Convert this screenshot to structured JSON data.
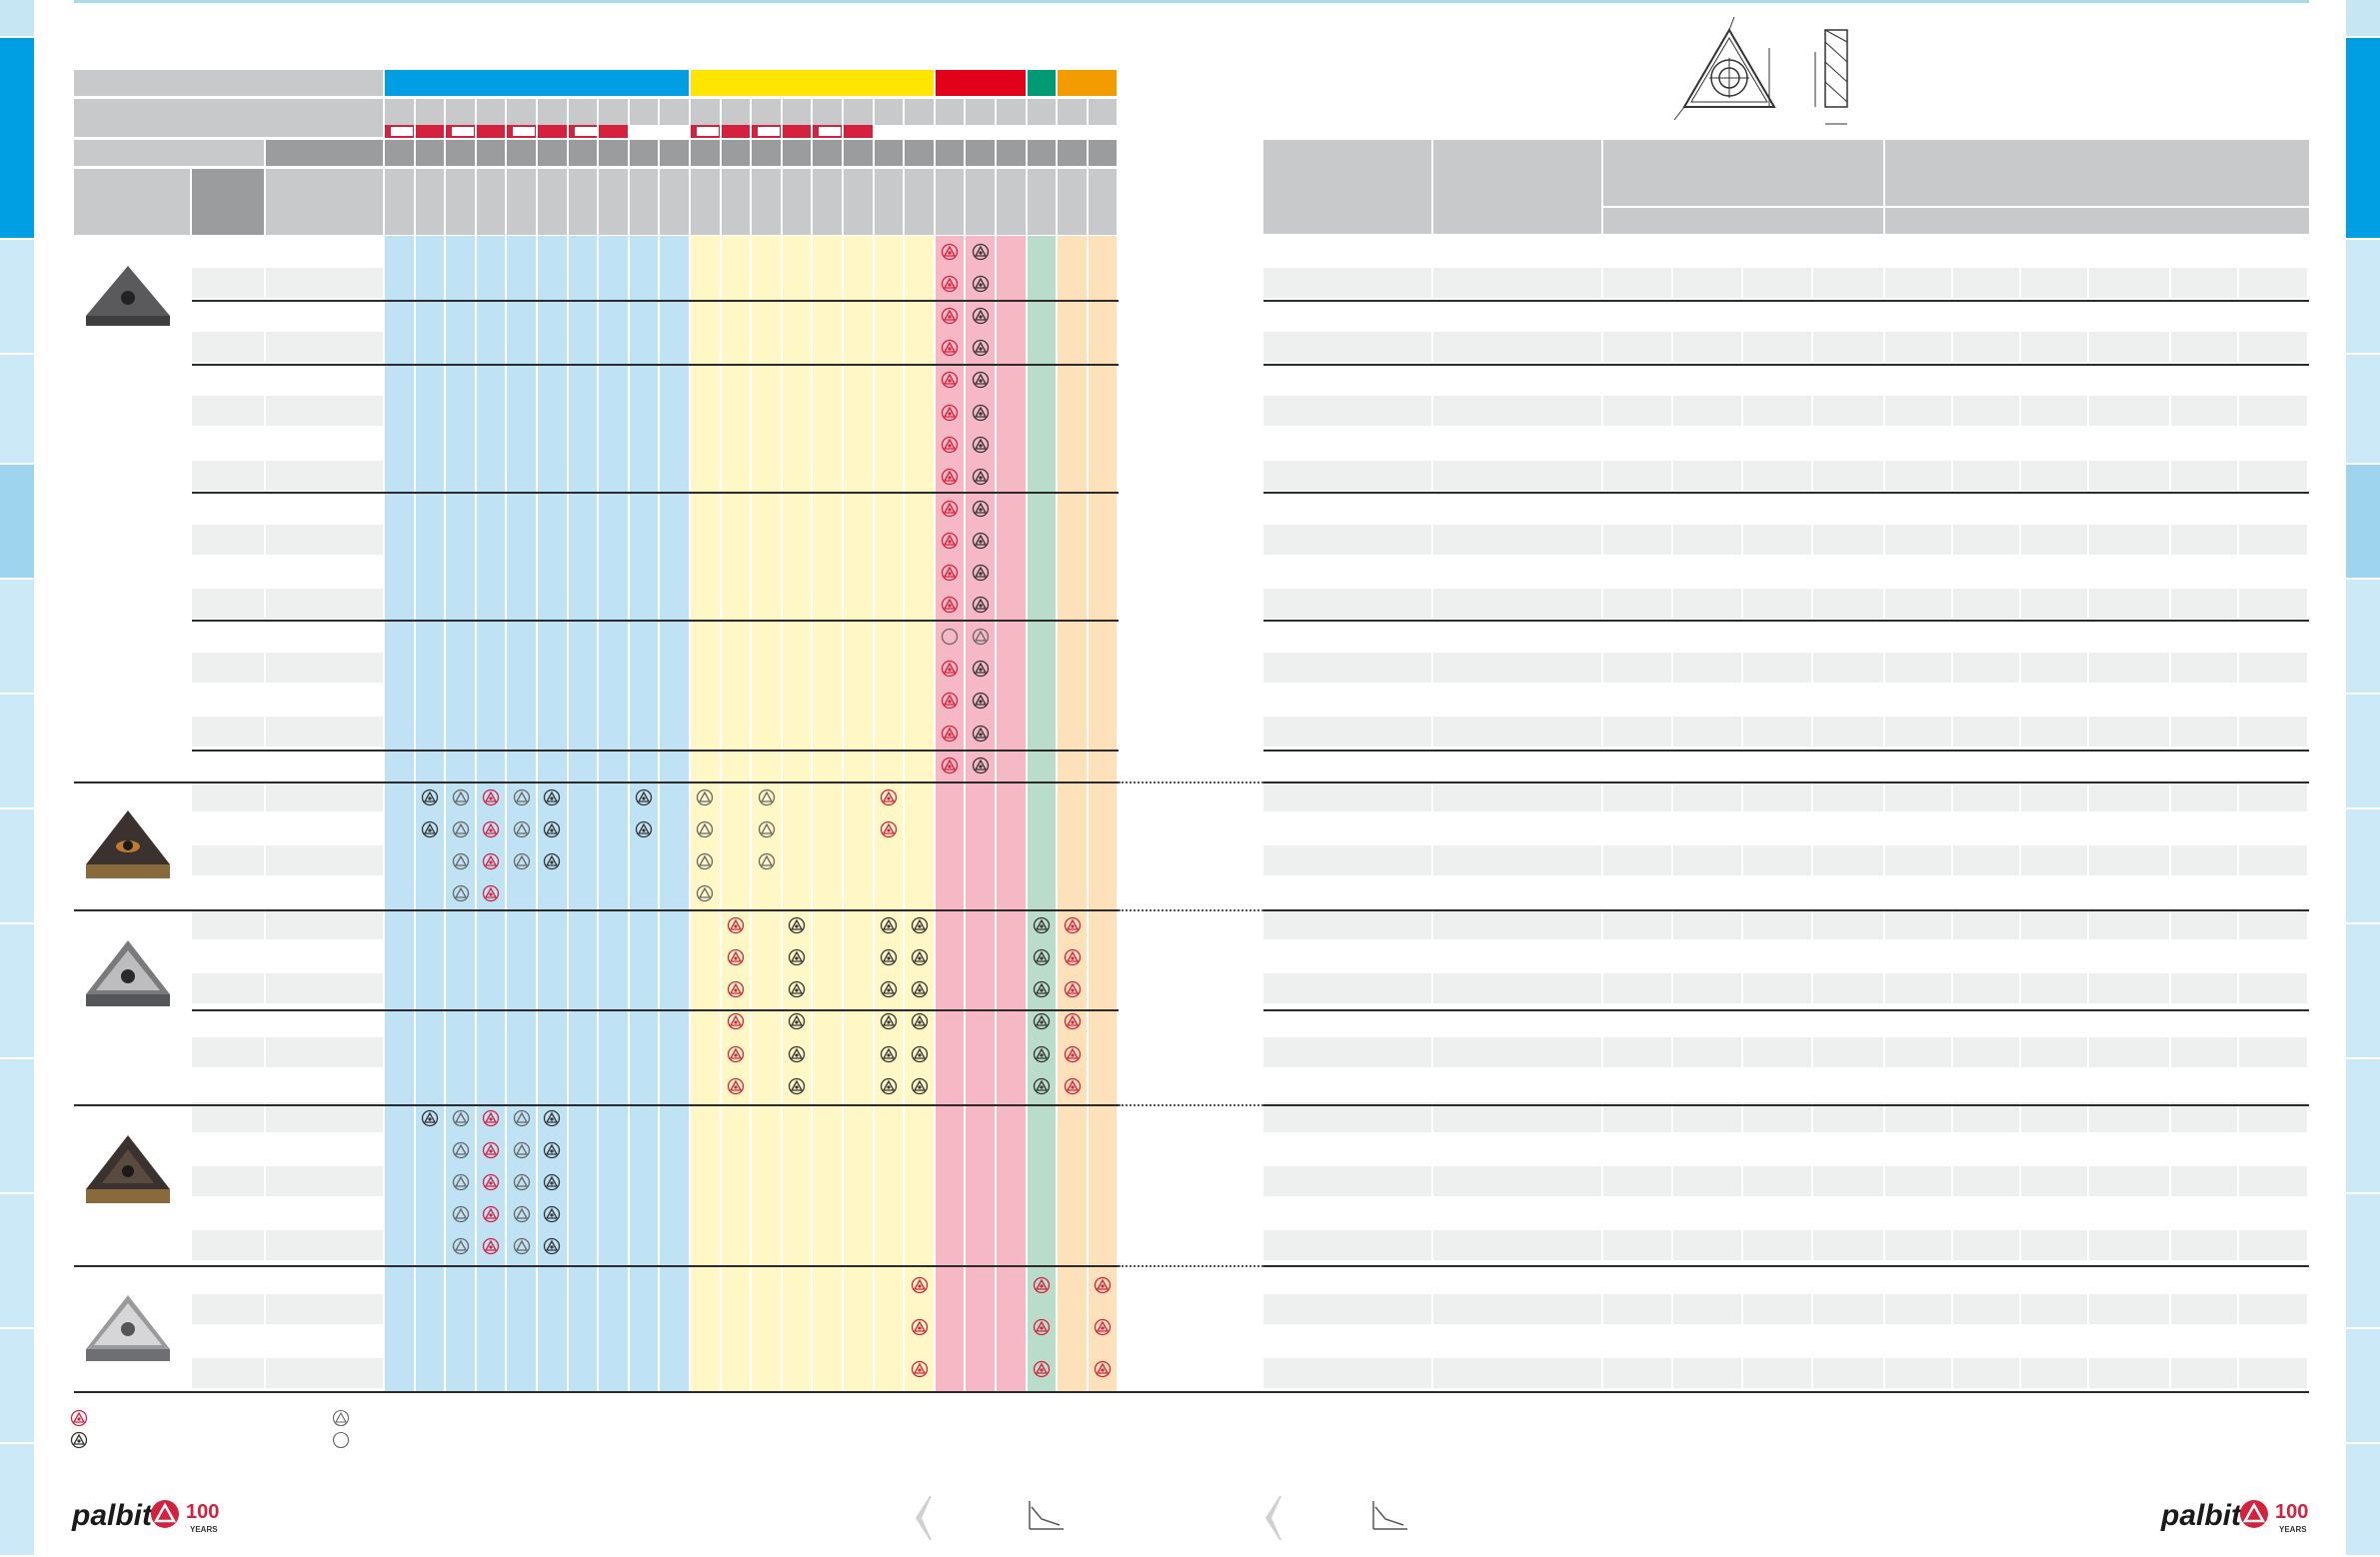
{
  "page": {
    "colors": {
      "blue_band": "#bfe3f5",
      "blue_header": "#009fe3",
      "yellow_band": "#fff7c5",
      "yellow_header": "#ffe500",
      "red_band": "#f7b8c6",
      "red_header": "#e2001a",
      "green_band": "#b9dccb",
      "green_header": "#009a74",
      "orange_band": "#fde1bb",
      "orange_header": "#f39c00",
      "accent_red": "#d4213d",
      "side_tab_active": "#009fe3",
      "side_tab_light": "#cce9f7"
    },
    "icons": {
      "insert_drawing": "triangular-insert-drawing-icon",
      "red_mark": "recommended-red-triangle-icon",
      "dark_mark": "alternative-dark-triangle-icon",
      "outline_mark": "possible-outline-triangle-icon",
      "circle_mark": "circle-icon",
      "feed_arrow": "arrow-right-icon",
      "prev_page": "chevron-left-icon",
      "graph": "feed-graph-icon"
    }
  },
  "logo_left": {
    "word": "palbit",
    "years_number": "100",
    "years_label": "YEARS"
  },
  "logo_right": {
    "word": "palbit",
    "years_number": "100",
    "years_label": "YEARS"
  }
}
